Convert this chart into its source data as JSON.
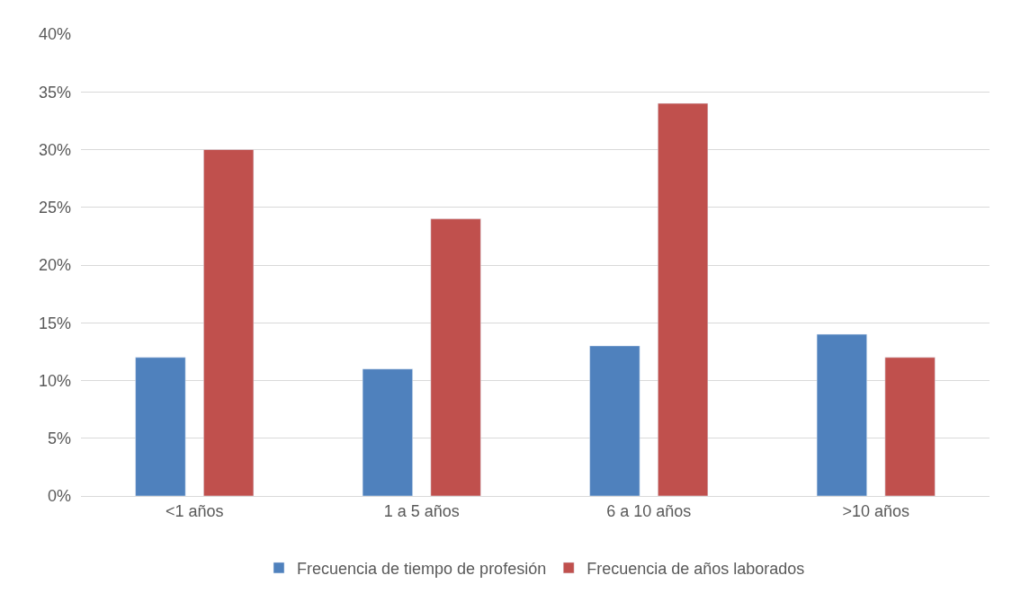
{
  "chart_data": {
    "type": "bar",
    "categories": [
      "<1 años",
      "1 a 5 años",
      "6 a 10 años",
      ">10 años"
    ],
    "series": [
      {
        "name": "Frecuencia de tiempo de profesión",
        "color": "#4f81bd",
        "values": [
          12,
          11,
          13,
          14
        ]
      },
      {
        "name": "Frecuencia de años laborados",
        "color": "#c0504d",
        "values": [
          30,
          24,
          34,
          12
        ]
      }
    ],
    "ylim": [
      0,
      40
    ],
    "yticks": [
      {
        "value": 0,
        "label": "0%"
      },
      {
        "value": 5,
        "label": "5%"
      },
      {
        "value": 10,
        "label": "10%"
      },
      {
        "value": 15,
        "label": "15%"
      },
      {
        "value": 20,
        "label": "20%"
      },
      {
        "value": 25,
        "label": "25%"
      },
      {
        "value": 30,
        "label": "30%"
      },
      {
        "value": 35,
        "label": "35%"
      },
      {
        "value": 40,
        "label": "40%"
      }
    ],
    "grid": "y",
    "legend": "bottom"
  }
}
